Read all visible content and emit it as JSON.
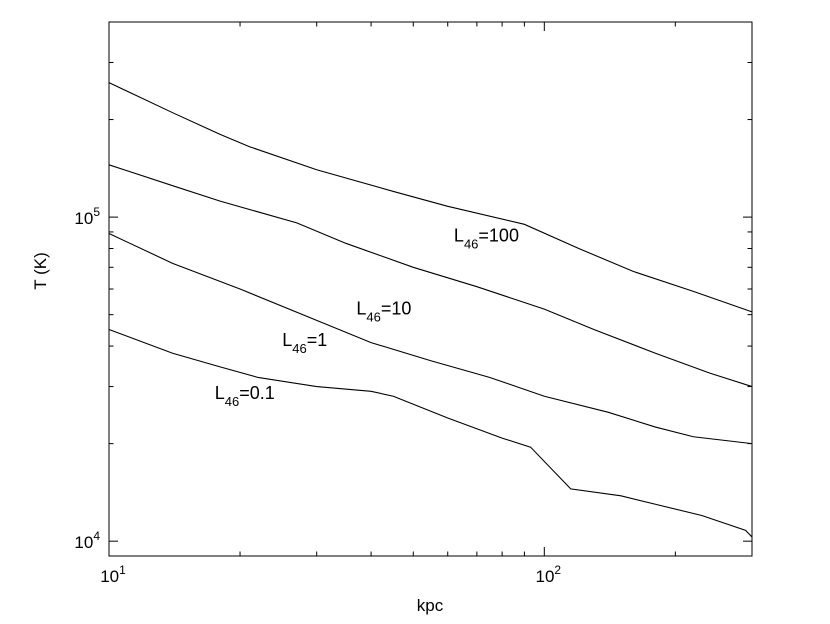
{
  "chart_data": {
    "type": "line",
    "xlabel": "kpc",
    "ylabel": "T (K)",
    "xscale": "log",
    "yscale": "log",
    "xlim": [
      10,
      300
    ],
    "ylim": [
      9000,
      400000
    ],
    "grid": false,
    "legend": "none",
    "x_ticks": [
      {
        "value": 10,
        "base": "10",
        "exp": "1"
      },
      {
        "value": 100,
        "base": "10",
        "exp": "2"
      }
    ],
    "y_ticks": [
      {
        "value": 10000,
        "base": "10",
        "exp": "4"
      },
      {
        "value": 100000,
        "base": "10",
        "exp": "5"
      }
    ],
    "series": [
      {
        "name": "L46=100",
        "label_prefix": "L",
        "label_sub": "46",
        "label_suffix": "=100",
        "label_anchor": {
          "x": 62,
          "y": 84000
        },
        "points": [
          [
            10,
            260000
          ],
          [
            14,
            210000
          ],
          [
            18,
            180000
          ],
          [
            21,
            165000
          ],
          [
            30,
            140000
          ],
          [
            45,
            120000
          ],
          [
            60,
            108000
          ],
          [
            90,
            95000
          ],
          [
            120,
            80000
          ],
          [
            160,
            68000
          ],
          [
            220,
            59000
          ],
          [
            300,
            51000
          ]
        ]
      },
      {
        "name": "L46=10",
        "label_prefix": "L",
        "label_sub": "46",
        "label_suffix": "=10",
        "label_anchor": {
          "x": 37,
          "y": 50000
        },
        "points": [
          [
            10,
            145000
          ],
          [
            14,
            125000
          ],
          [
            18,
            112000
          ],
          [
            27,
            96000
          ],
          [
            35,
            83000
          ],
          [
            50,
            70000
          ],
          [
            70,
            61000
          ],
          [
            100,
            52000
          ],
          [
            130,
            45000
          ],
          [
            180,
            38000
          ],
          [
            240,
            33000
          ],
          [
            300,
            30000
          ]
        ]
      },
      {
        "name": "L46=1",
        "label_prefix": "L",
        "label_sub": "46",
        "label_suffix": "=1",
        "label_anchor": {
          "x": 25,
          "y": 40000
        },
        "points": [
          [
            10,
            89000
          ],
          [
            14,
            72000
          ],
          [
            20,
            60000
          ],
          [
            30,
            48000
          ],
          [
            40,
            41000
          ],
          [
            55,
            36000
          ],
          [
            75,
            32000
          ],
          [
            100,
            28000
          ],
          [
            140,
            25000
          ],
          [
            180,
            22500
          ],
          [
            220,
            21000
          ],
          [
            300,
            20000
          ]
        ]
      },
      {
        "name": "L46=0.1",
        "label_prefix": "L",
        "label_sub": "46",
        "label_suffix": "=0.1",
        "label_anchor": {
          "x": 17.5,
          "y": 27500
        },
        "points": [
          [
            10,
            45000
          ],
          [
            14,
            38000
          ],
          [
            18,
            34500
          ],
          [
            22,
            32000
          ],
          [
            30,
            30000
          ],
          [
            40,
            29000
          ],
          [
            45,
            28000
          ],
          [
            60,
            24000
          ],
          [
            80,
            20800
          ],
          [
            93,
            19500
          ],
          [
            115,
            14500
          ],
          [
            150,
            13800
          ],
          [
            180,
            13000
          ],
          [
            230,
            12000
          ],
          [
            290,
            10800
          ],
          [
            300,
            10300
          ]
        ]
      }
    ]
  }
}
